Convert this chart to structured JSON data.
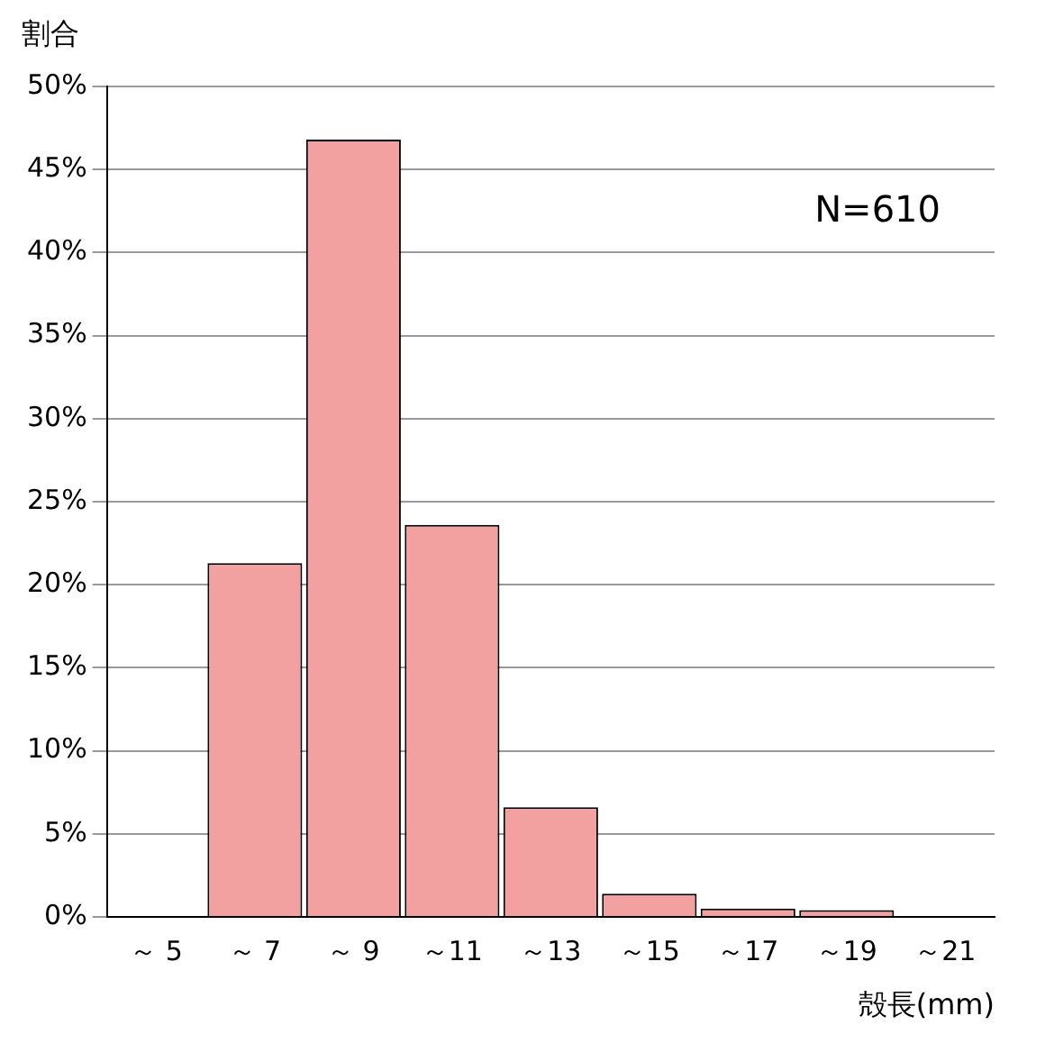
{
  "chart_data": {
    "type": "bar",
    "ylabel": "割合",
    "xlabel": "殻長(mm)",
    "annotations": [
      "N=610"
    ],
    "categories": [
      "～ 5",
      "～ 7",
      "～ 9",
      "～11",
      "～13",
      "～15",
      "～17",
      "～19",
      "～21"
    ],
    "values": [
      0,
      21.3,
      46.8,
      23.6,
      6.6,
      1.4,
      0.5,
      0.4,
      0
    ],
    "color": "#f2a0a0",
    "ylim": [
      0,
      50
    ],
    "yticks": [
      {
        "value": 0,
        "label": "0%"
      },
      {
        "value": 5,
        "label": "5%"
      },
      {
        "value": 10,
        "label": "10%"
      },
      {
        "value": 15,
        "label": "15%"
      },
      {
        "value": 20,
        "label": "20%"
      },
      {
        "value": 25,
        "label": "25%"
      },
      {
        "value": 30,
        "label": "30%"
      },
      {
        "value": 35,
        "label": "35%"
      },
      {
        "value": 40,
        "label": "40%"
      },
      {
        "value": 45,
        "label": "45%"
      },
      {
        "value": 50,
        "label": "50%"
      }
    ],
    "grid": "y",
    "legend": false
  }
}
